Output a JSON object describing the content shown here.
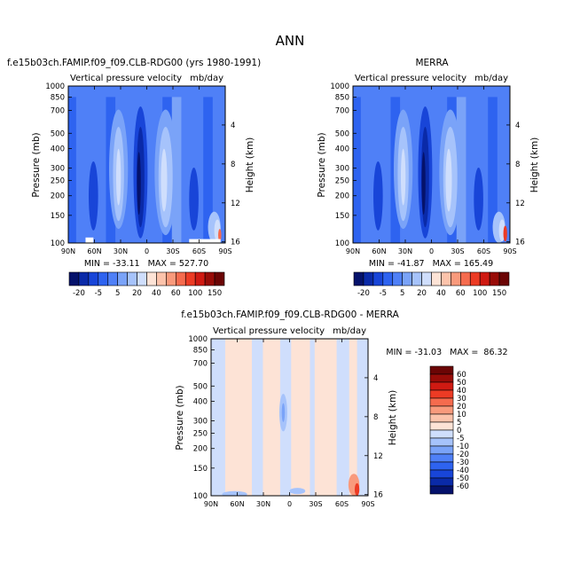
{
  "page_title": "ANN",
  "colors": {
    "blues": [
      "#05126b",
      "#0a2aa8",
      "#1845d8",
      "#2e63f0",
      "#4f80f7",
      "#7aa3f8",
      "#a6c3fb",
      "#cfdefc"
    ],
    "reds": [
      "#fde3d6",
      "#fcc3ab",
      "#f99a7c",
      "#f56b4e",
      "#ec3b24",
      "#cf1a12",
      "#980c08",
      "#6b0505"
    ]
  },
  "chart_data": [
    {
      "id": "model",
      "type": "heatmap",
      "title_left": "f.e15b03ch.FAMIP.f09_f09.CLB-RDG00 (yrs 1980-1991)",
      "title_right": "",
      "subtitle_left": "Vertical pressure velocity",
      "subtitle_right": "mb/day",
      "xlabel": "",
      "ylabel": "Pressure (mb)",
      "ylabel_right": "Height (km)",
      "x_ticks": [
        "90N",
        "60N",
        "30N",
        "0",
        "30S",
        "60S",
        "90S"
      ],
      "x_values": [
        90,
        60,
        30,
        0,
        -30,
        -60,
        -90
      ],
      "y_ticks": [
        "100",
        "150",
        "200",
        "250",
        "300",
        "400",
        "500",
        "700",
        "850",
        "1000"
      ],
      "y_values": [
        100,
        150,
        200,
        250,
        300,
        400,
        500,
        700,
        850,
        1000
      ],
      "height_ticks": [
        "4",
        "8",
        "12",
        "16"
      ],
      "height_values": [
        4,
        8,
        12,
        16
      ],
      "ylim": [
        1000,
        100
      ],
      "stats": "MIN = -33.11   MAX = 527.70",
      "colorbar_labels": [
        "-20",
        "-5",
        "5",
        "20",
        "40",
        "60",
        "100",
        "150"
      ]
    },
    {
      "id": "obs",
      "type": "heatmap",
      "title_left": "",
      "title_right": "MERRA",
      "subtitle_left": "Vertical pressure velocity",
      "subtitle_right": "mb/day",
      "xlabel": "",
      "ylabel": "Pressure (mb)",
      "ylabel_right": "Height (km)",
      "x_ticks": [
        "90N",
        "60N",
        "30N",
        "0",
        "30S",
        "60S",
        "90S"
      ],
      "x_values": [
        90,
        60,
        30,
        0,
        -30,
        -60,
        -90
      ],
      "y_ticks": [
        "100",
        "150",
        "200",
        "250",
        "300",
        "400",
        "500",
        "700",
        "850",
        "1000"
      ],
      "y_values": [
        100,
        150,
        200,
        250,
        300,
        400,
        500,
        700,
        850,
        1000
      ],
      "height_ticks": [
        "4",
        "8",
        "12",
        "16"
      ],
      "height_values": [
        4,
        8,
        12,
        16
      ],
      "ylim": [
        1000,
        100
      ],
      "stats": "MIN = -41.87   MAX = 165.49",
      "colorbar_labels": [
        "-20",
        "-5",
        "5",
        "20",
        "40",
        "60",
        "100",
        "150"
      ]
    },
    {
      "id": "diff",
      "type": "heatmap",
      "title_left": "",
      "title_center": "f.e15b03ch.FAMIP.f09_f09.CLB-RDG00 - MERRA",
      "subtitle_left": "Vertical pressure velocity",
      "subtitle_right": "mb/day",
      "xlabel": "",
      "ylabel": "Pressure (mb)",
      "ylabel_right": "Height (km)",
      "x_ticks": [
        "90N",
        "60N",
        "30N",
        "0",
        "30S",
        "60S",
        "90S"
      ],
      "x_values": [
        90,
        60,
        30,
        0,
        -30,
        -60,
        -90
      ],
      "y_ticks": [
        "100",
        "150",
        "200",
        "250",
        "300",
        "400",
        "500",
        "700",
        "850",
        "1000"
      ],
      "y_values": [
        100,
        150,
        200,
        250,
        300,
        400,
        500,
        700,
        850,
        1000
      ],
      "height_ticks": [
        "4",
        "8",
        "12",
        "16"
      ],
      "height_values": [
        4,
        8,
        12,
        16
      ],
      "ylim": [
        1000,
        100
      ],
      "stats": "MIN = -31.03   MAX =  86.32",
      "colorbar_labels": [
        "60",
        "50",
        "40",
        "30",
        "20",
        "10",
        "5",
        "0",
        "-5",
        "-10",
        "-20",
        "-30",
        "-40",
        "-50",
        "-60"
      ]
    }
  ]
}
